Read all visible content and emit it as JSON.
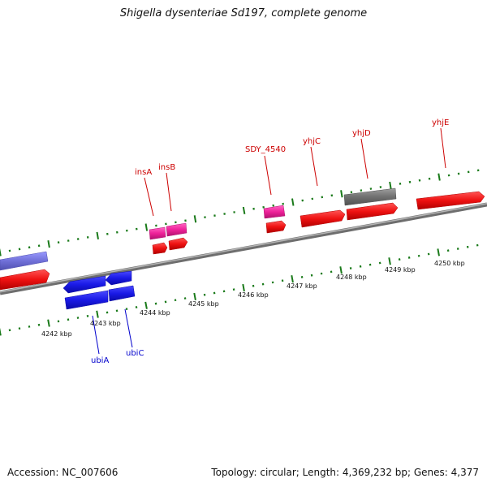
{
  "title": "Shigella dysenteriae Sd197, complete genome",
  "footer": {
    "accession": "Accession: NC_007606",
    "summary": "Topology: circular; Length: 4,369,232 bp; Genes: 4,377"
  },
  "colors": {
    "backbone": "#8a8a8a",
    "forward_gene": "#ee1111",
    "reverse_gene": "#1a1ae6",
    "insertion_element": "#ee2299",
    "other_feature": "#7070d8",
    "pseudo_feature": "#707070",
    "tick": "#1a7a1a",
    "label_red": "#cc0000",
    "label_blue": "#0000cc"
  },
  "scale_labels": [
    "4242 kbp",
    "4243 kbp",
    "4244 kbp",
    "4245 kbp",
    "4246 kbp",
    "4247 kbp",
    "4248 kbp",
    "4249 kbp",
    "4250 kbp"
  ],
  "gene_labels": [
    {
      "text": "insA",
      "color": "red"
    },
    {
      "text": "insB",
      "color": "red"
    },
    {
      "text": "SDY_4540",
      "color": "red"
    },
    {
      "text": "yhjC",
      "color": "red"
    },
    {
      "text": "yhjD",
      "color": "red"
    },
    {
      "text": "yhjE",
      "color": "red"
    },
    {
      "text": "ubiA",
      "color": "blue"
    },
    {
      "text": "ubiC",
      "color": "blue"
    }
  ]
}
